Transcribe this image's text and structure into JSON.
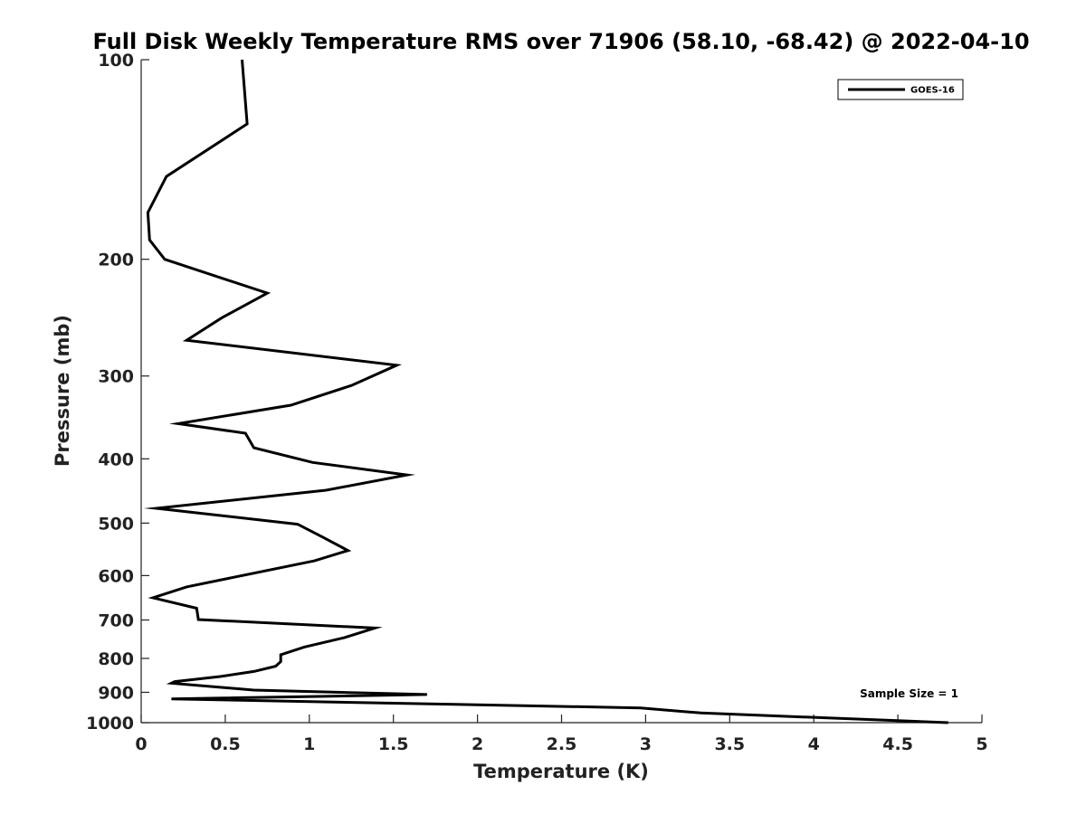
{
  "chart_data": {
    "type": "line",
    "title": "Full Disk Weekly Temperature RMS over 71906 (58.10, -68.42) @ 2022-04-10",
    "xlabel": "Temperature (K)",
    "ylabel": "Pressure (mb)",
    "xlim": [
      0,
      5
    ],
    "ylim": [
      100,
      1000
    ],
    "y_scale": "log",
    "y_reversed": true,
    "x_ticks": [
      0,
      0.5,
      1,
      1.5,
      2,
      2.5,
      3,
      3.5,
      4,
      4.5,
      5
    ],
    "x_tick_labels": [
      "0",
      "0.5",
      "1",
      "1.5",
      "2",
      "2.5",
      "3",
      "3.5",
      "4",
      "4.5",
      "5"
    ],
    "y_ticks": [
      100,
      200,
      300,
      400,
      500,
      600,
      700,
      800,
      900,
      1000
    ],
    "y_tick_labels": [
      "100",
      "200",
      "300",
      "400",
      "500",
      "600",
      "700",
      "800",
      "900",
      "1000"
    ],
    "grid": false,
    "legend_position": "top-right",
    "annotation": "Sample Size = 1",
    "series": [
      {
        "name": "GOES-16",
        "color": "#000000",
        "points": [
          [
            0.6,
            100
          ],
          [
            0.63,
            125
          ],
          [
            0.15,
            150
          ],
          [
            0.04,
            170
          ],
          [
            0.05,
            187
          ],
          [
            0.14,
            200
          ],
          [
            0.75,
            225
          ],
          [
            0.48,
            245
          ],
          [
            0.27,
            265
          ],
          [
            1.52,
            289
          ],
          [
            1.25,
            310
          ],
          [
            0.89,
            332
          ],
          [
            0.22,
            354
          ],
          [
            0.62,
            366
          ],
          [
            0.67,
            385
          ],
          [
            1.02,
            405
          ],
          [
            1.58,
            423
          ],
          [
            1.1,
            446
          ],
          [
            0.09,
            475
          ],
          [
            0.93,
            502
          ],
          [
            1.08,
            525
          ],
          [
            1.23,
            550
          ],
          [
            1.03,
            570
          ],
          [
            0.27,
            624
          ],
          [
            0.07,
            648
          ],
          [
            0.33,
            672
          ],
          [
            0.34,
            699
          ],
          [
            1.39,
            720
          ],
          [
            1.21,
            744
          ],
          [
            0.97,
            769
          ],
          [
            0.83,
            790
          ],
          [
            0.83,
            809
          ],
          [
            0.8,
            822
          ],
          [
            0.67,
            837
          ],
          [
            0.47,
            852
          ],
          [
            0.2,
            867
          ],
          [
            0.18,
            872
          ],
          [
            0.67,
            893
          ],
          [
            1.7,
            907
          ],
          [
            0.18,
            921
          ],
          [
            2.97,
            950
          ],
          [
            3.33,
            967
          ],
          [
            4.8,
            1000
          ]
        ]
      }
    ]
  }
}
